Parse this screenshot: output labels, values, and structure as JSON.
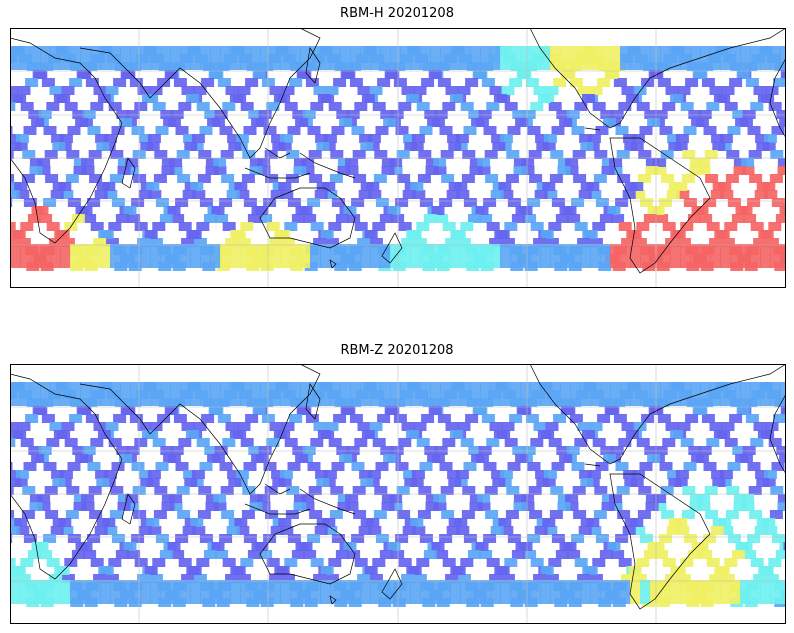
{
  "panels": [
    {
      "title": "RBM-H 20201208",
      "variant": "H"
    },
    {
      "title": "RBM-Z 20201208",
      "variant": "Z"
    }
  ],
  "colors": {
    "low": "#6464f0",
    "mid_low": "#5aa5f5",
    "mid": "#6ef0f0",
    "mid_high": "#f0f064",
    "high": "#f56464",
    "coast": "#000000",
    "grid": "#bfbfbf"
  }
}
